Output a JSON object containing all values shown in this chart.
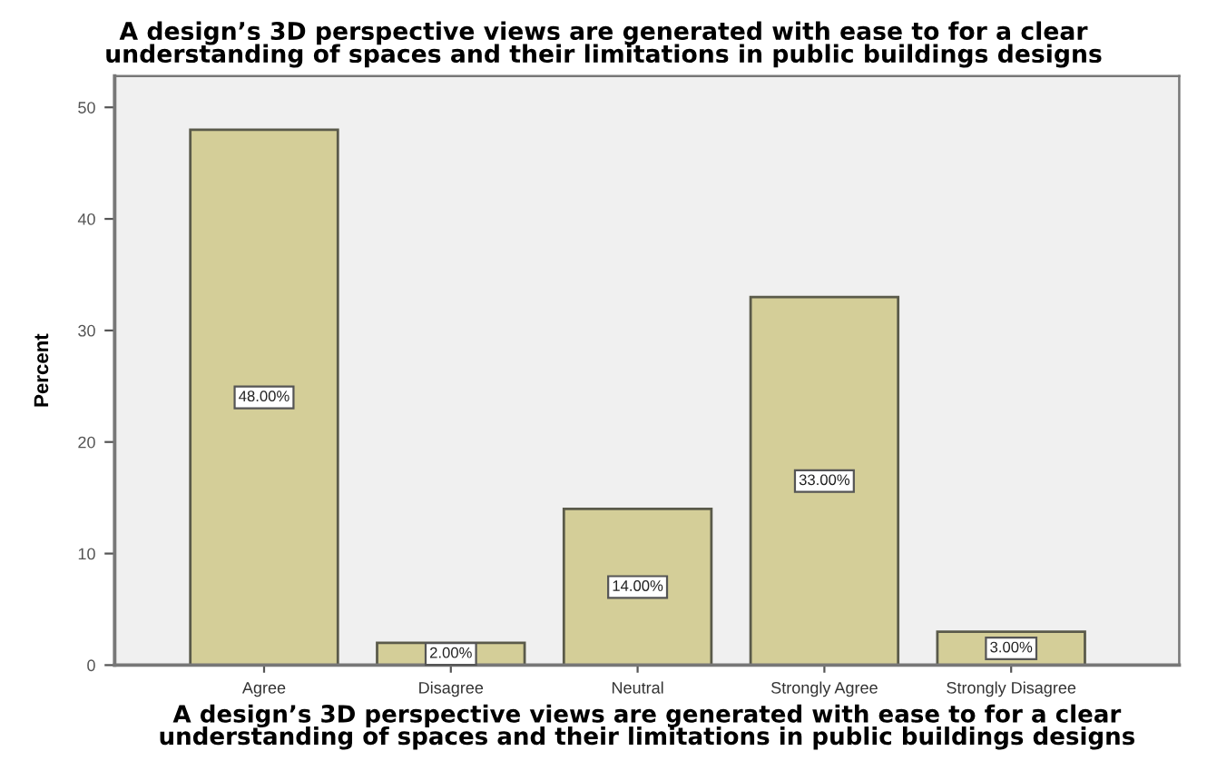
{
  "chart_data": {
    "type": "bar",
    "title": "A design’s 3D perspective views are generated with ease to for a clear\nunderstanding of spaces and their limitations in public buildings designs",
    "xlabel": "A design’s 3D perspective views are generated with ease to for a clear\nunderstanding of spaces and their limitations in public buildings designs",
    "ylabel": "Percent",
    "categories": [
      "Agree",
      "Disagree",
      "Neutral",
      "Strongly Agree",
      "Strongly Disagree"
    ],
    "values": [
      48,
      2,
      14,
      33,
      3
    ],
    "value_labels": [
      "48.00%",
      "2.00%",
      "14.00%",
      "33.00%",
      "3.00%"
    ],
    "color": "#d4ce98",
    "ylim": [
      0,
      52.8
    ],
    "yticks": [
      0,
      10,
      20,
      30,
      40,
      50
    ],
    "grid": false,
    "legend": false
  }
}
